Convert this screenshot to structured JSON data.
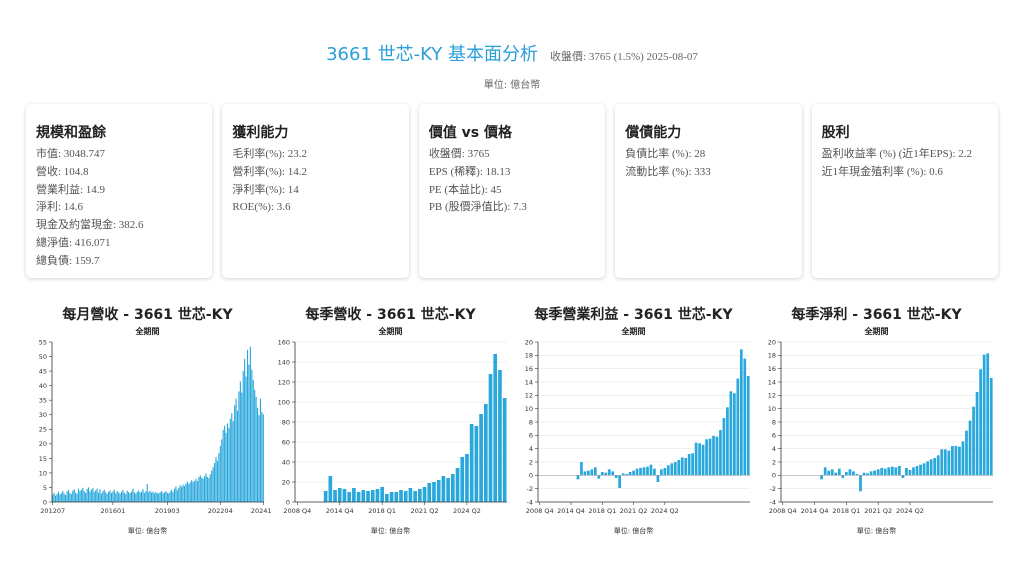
{
  "header": {
    "title": "3661 世芯-KY 基本面分析",
    "price_info": "收盤價: 3765 (1.5%) 2025-08-07",
    "unit": "單位: 億台幣"
  },
  "cards": [
    {
      "title": "規模和盈餘",
      "items": [
        "市值: 3048.747",
        "營收: 104.8",
        "營業利益: 14.9",
        "淨利: 14.6",
        "現金及約當現金: 382.6",
        "總淨值: 416.071",
        "總負債: 159.7"
      ]
    },
    {
      "title": "獲利能力",
      "items": [
        "毛利率(%): 23.2",
        "營利率(%): 14.2",
        "淨利率(%): 14",
        "ROE(%): 3.6"
      ]
    },
    {
      "title": "價值 vs 價格",
      "items": [
        "收盤價: 3765",
        "EPS (稀釋): 18.13",
        "PE (本益比): 45",
        "PB (股價淨值比): 7.3"
      ]
    },
    {
      "title": "償債能力",
      "items": [
        "負債比率 (%): 28",
        "流動比率 (%): 333"
      ]
    },
    {
      "title": "股利",
      "items": [
        "盈利收益率 (%) (近1年EPS): 2.2",
        "近1年現金殖利率 (%): 0.6"
      ]
    }
  ],
  "colors": {
    "title": "#2a9fd8",
    "bar": "#29a8dc",
    "axis": "#333333",
    "grid": "#e6e6e6"
  },
  "chart_data": [
    {
      "type": "bar",
      "title": "每月營收 - 3661 世芯-KY",
      "subtitle": "全期間",
      "unit_note": "單位: 億台幣",
      "ylim": [
        0,
        55
      ],
      "yticks": [
        0,
        5,
        10,
        15,
        20,
        25,
        30,
        35,
        40,
        45,
        50,
        55
      ],
      "grid": false,
      "xtick_labels": [
        {
          "index": 0,
          "label": "201207"
        },
        {
          "index": 42,
          "label": "201601"
        },
        {
          "index": 80,
          "label": "201903"
        },
        {
          "index": 117,
          "label": "202204"
        },
        {
          "index": 147,
          "label": "202410"
        }
      ],
      "values": [
        2.5,
        3.1,
        2.2,
        2.8,
        3.5,
        2.6,
        3.0,
        3.8,
        2.9,
        2.4,
        3.6,
        4.1,
        3.2,
        2.7,
        3.9,
        4.4,
        3.3,
        2.8,
        4.6,
        3.7,
        4.2,
        4.9,
        3.8,
        3.1,
        4.5,
        5.0,
        3.6,
        4.3,
        4.8,
        3.5,
        4.0,
        4.6,
        3.2,
        4.4,
        2.9,
        3.7,
        4.2,
        3.4,
        2.8,
        3.5,
        4.0,
        3.1,
        3.6,
        4.3,
        3.0,
        3.8,
        3.3,
        2.9,
        3.5,
        4.1,
        3.2,
        2.7,
        3.9,
        3.4,
        3.0,
        3.6,
        4.6,
        3.3,
        2.9,
        3.5,
        4.0,
        3.2,
        3.6,
        4.4,
        3.1,
        3.7,
        6.2,
        3.4,
        3.9,
        3.3,
        3.6,
        3.0,
        3.5,
        3.1,
        2.9,
        3.4,
        3.8,
        3.0,
        3.3,
        3.7,
        3.2,
        2.9,
        3.6,
        4.2,
        3.5,
        4.6,
        5.4,
        4.1,
        4.9,
        5.8,
        5.2,
        6.0,
        5.5,
        6.3,
        7.0,
        6.2,
        6.8,
        7.5,
        6.9,
        7.3,
        8.0,
        7.2,
        8.5,
        9.2,
        8.4,
        8.0,
        8.9,
        9.8,
        8.6,
        8.2,
        9.5,
        10.8,
        12.0,
        13.4,
        15.5,
        14.2,
        16.8,
        19.3,
        21.5,
        24.8,
        26.2,
        23.8,
        27.0,
        25.4,
        28.6,
        30.5,
        27.8,
        33.2,
        35.6,
        31.4,
        38.0,
        41.5,
        37.6,
        45.0,
        49.2,
        43.1,
        52.3,
        47.2,
        53.4,
        45.5,
        42.0,
        38.6,
        36.2,
        32.4,
        29.8,
        35.5,
        31.0,
        30.2
      ]
    },
    {
      "type": "bar",
      "title": "每季營收 - 3661 世芯-KY",
      "subtitle": "全期間",
      "unit_note": "單位: 億台幣",
      "ylim": [
        0,
        160
      ],
      "yticks": [
        0,
        20,
        40,
        60,
        80,
        100,
        120,
        140,
        160
      ],
      "grid": true,
      "xtick_labels": [
        {
          "index": 0,
          "label": "2008 Q4"
        },
        {
          "index": 9,
          "label": "2014 Q4"
        },
        {
          "index": 18,
          "label": "2018 Q1"
        },
        {
          "index": 27,
          "label": "2021 Q2"
        },
        {
          "index": 36,
          "label": "2024 Q2"
        }
      ],
      "values": [
        null,
        null,
        null,
        null,
        null,
        null,
        11,
        26,
        12,
        14,
        13,
        10,
        14,
        10,
        12,
        11,
        12,
        13,
        15,
        8,
        10,
        10,
        12,
        11,
        14,
        11,
        13,
        15,
        19,
        20,
        22,
        26,
        24,
        28,
        34,
        45,
        48,
        78,
        76,
        88,
        98,
        128,
        148,
        132,
        104
      ]
    },
    {
      "type": "bar",
      "title": "每季營業利益 - 3661 世芯-KY",
      "subtitle": "全期間",
      "unit_note": "單位: 億台幣",
      "ylim": [
        -4,
        20
      ],
      "yticks": [
        -4,
        -2,
        0,
        2,
        4,
        6,
        8,
        10,
        12,
        14,
        16,
        18,
        20
      ],
      "grid": true,
      "xtick_labels": [
        {
          "index": 0,
          "label": "2008 Q4"
        },
        {
          "index": 9,
          "label": "2014 Q4"
        },
        {
          "index": 18,
          "label": "2018 Q1"
        },
        {
          "index": 27,
          "label": "2021 Q2"
        },
        {
          "index": 36,
          "label": "2024 Q2"
        }
      ],
      "values": [
        null,
        null,
        null,
        null,
        null,
        null,
        null,
        null,
        null,
        null,
        null,
        -0.6,
        2.0,
        0.6,
        0.7,
        0.9,
        1.2,
        -0.5,
        0.5,
        0.4,
        0.9,
        0.6,
        -0.4,
        -1.9,
        0.3,
        0.2,
        0.5,
        0.7,
        1.0,
        1.1,
        1.2,
        1.3,
        1.6,
        1.0,
        -1.0,
        0.9,
        1.1,
        1.5,
        1.8,
        2.0,
        2.3,
        2.7,
        2.6,
        3.2,
        3.3,
        4.9,
        4.8,
        4.6,
        5.4,
        5.5,
        5.9,
        5.8,
        6.8,
        8.6,
        10.2,
        12.6,
        12.3,
        14.5,
        18.9,
        17.5,
        14.9
      ]
    },
    {
      "type": "bar",
      "title": "每季淨利 - 3661 世芯-KY",
      "subtitle": "全期間",
      "unit_note": "單位: 億台幣",
      "ylim": [
        -4,
        20
      ],
      "yticks": [
        -4,
        -2,
        0,
        2,
        4,
        6,
        8,
        10,
        12,
        14,
        16,
        18,
        20
      ],
      "grid": true,
      "xtick_labels": [
        {
          "index": 0,
          "label": "2008 Q4"
        },
        {
          "index": 9,
          "label": "2014 Q4"
        },
        {
          "index": 18,
          "label": "2018 Q1"
        },
        {
          "index": 27,
          "label": "2021 Q2"
        },
        {
          "index": 36,
          "label": "2024 Q2"
        }
      ],
      "values": [
        null,
        null,
        null,
        null,
        null,
        null,
        null,
        null,
        null,
        null,
        null,
        -0.6,
        1.2,
        0.7,
        0.9,
        0.4,
        1.0,
        -0.4,
        0.5,
        0.9,
        0.6,
        0.2,
        -2.4,
        0.4,
        0.3,
        0.6,
        0.7,
        0.9,
        1.1,
        1.0,
        1.2,
        1.3,
        1.2,
        1.4,
        -0.4,
        1.1,
        0.8,
        1.2,
        1.4,
        1.6,
        1.8,
        2.1,
        2.4,
        2.6,
        3.0,
        3.9,
        3.9,
        3.7,
        4.4,
        4.4,
        4.3,
        5.1,
        6.7,
        8.2,
        10.3,
        12.5,
        15.9,
        18.1,
        18.3,
        14.6
      ]
    }
  ]
}
